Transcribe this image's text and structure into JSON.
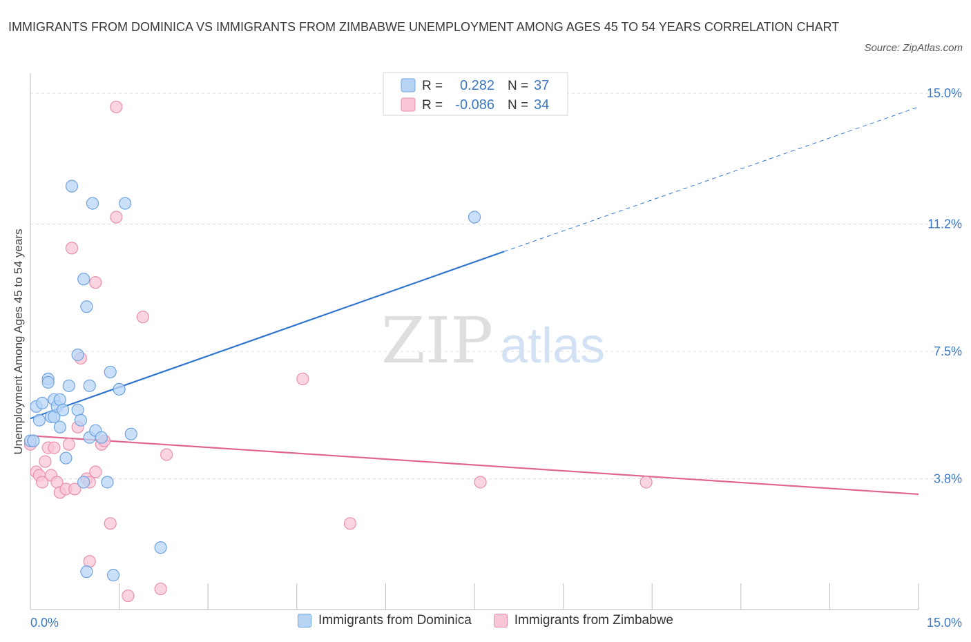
{
  "title": "IMMIGRANTS FROM DOMINICA VS IMMIGRANTS FROM ZIMBABWE UNEMPLOYMENT AMONG AGES 45 TO 54 YEARS CORRELATION CHART",
  "source": "Source: ZipAtlas.com",
  "watermark": {
    "zip": "ZIP",
    "atlas": "atlas"
  },
  "colors": {
    "blue_fill": "#b8d4f5",
    "blue_stroke": "#6fa3e0",
    "blue_line": "#2f74d0",
    "pink_fill": "#f8c6d6",
    "pink_stroke": "#e98fae",
    "pink_line": "#e0648e",
    "axis_text": "#3b78c4",
    "grid": "#dcdcdc"
  },
  "stats_legend": [
    {
      "r_label": "R =",
      "r_value": "0.282",
      "n_label": "N =",
      "n_value": "37"
    },
    {
      "r_label": "R =",
      "r_value": "-0.086",
      "n_label": "N =",
      "n_value": "34"
    }
  ],
  "chart_data": {
    "type": "scatter",
    "xlabel": "",
    "ylabel": "Unemployment Among Ages 45 to 54 years",
    "xlim": [
      0,
      15
    ],
    "ylim": [
      0,
      15
    ],
    "x_tick_labels": [
      "0.0%",
      "15.0%"
    ],
    "y_ticks": [
      3.8,
      7.5,
      11.2,
      15.0
    ],
    "y_tick_labels": [
      "3.8%",
      "7.5%",
      "11.2%",
      "15.0%"
    ],
    "legend": [
      "Immigrants from Dominica",
      "Immigrants from Zimbabwe"
    ],
    "series": [
      {
        "name": "Immigrants from Dominica",
        "color": "blue",
        "points": [
          [
            0.0,
            4.9
          ],
          [
            0.05,
            4.9
          ],
          [
            0.1,
            5.9
          ],
          [
            0.15,
            5.5
          ],
          [
            0.2,
            6.0
          ],
          [
            0.3,
            6.7
          ],
          [
            0.3,
            6.6
          ],
          [
            0.35,
            5.6
          ],
          [
            0.4,
            5.6
          ],
          [
            0.4,
            6.1
          ],
          [
            0.45,
            5.9
          ],
          [
            0.5,
            6.1
          ],
          [
            0.5,
            5.3
          ],
          [
            0.55,
            5.8
          ],
          [
            0.6,
            4.4
          ],
          [
            0.65,
            6.5
          ],
          [
            0.7,
            12.3
          ],
          [
            0.8,
            7.4
          ],
          [
            0.8,
            5.8
          ],
          [
            0.85,
            5.5
          ],
          [
            0.9,
            9.6
          ],
          [
            0.9,
            3.7
          ],
          [
            0.95,
            8.8
          ],
          [
            0.95,
            1.1
          ],
          [
            1.0,
            6.5
          ],
          [
            1.0,
            5.0
          ],
          [
            1.05,
            11.8
          ],
          [
            1.1,
            5.2
          ],
          [
            1.2,
            5.0
          ],
          [
            1.3,
            3.7
          ],
          [
            1.35,
            6.9
          ],
          [
            1.4,
            1.0
          ],
          [
            1.5,
            6.4
          ],
          [
            1.6,
            11.8
          ],
          [
            1.7,
            5.1
          ],
          [
            2.2,
            1.8
          ],
          [
            7.5,
            11.4
          ]
        ],
        "trend": {
          "x": [
            0.0,
            8.0
          ],
          "y": [
            5.55,
            10.4
          ],
          "dashed_extension": {
            "x": [
              8.0,
              15.0
            ],
            "y": [
              10.4,
              14.6
            ]
          }
        }
      },
      {
        "name": "Immigrants from Zimbabwe",
        "color": "pink",
        "points": [
          [
            0.0,
            4.8
          ],
          [
            0.1,
            4.0
          ],
          [
            0.15,
            3.9
          ],
          [
            0.2,
            3.7
          ],
          [
            0.25,
            4.3
          ],
          [
            0.3,
            4.7
          ],
          [
            0.35,
            3.9
          ],
          [
            0.4,
            4.7
          ],
          [
            0.45,
            3.7
          ],
          [
            0.5,
            3.4
          ],
          [
            0.6,
            3.5
          ],
          [
            0.65,
            4.8
          ],
          [
            0.7,
            10.5
          ],
          [
            0.75,
            3.5
          ],
          [
            0.8,
            5.3
          ],
          [
            0.85,
            7.3
          ],
          [
            0.95,
            3.8
          ],
          [
            1.0,
            3.7
          ],
          [
            1.0,
            1.4
          ],
          [
            1.1,
            4.0
          ],
          [
            1.1,
            9.5
          ],
          [
            1.2,
            4.8
          ],
          [
            1.25,
            4.9
          ],
          [
            1.35,
            2.5
          ],
          [
            1.45,
            14.6
          ],
          [
            1.45,
            11.4
          ],
          [
            1.65,
            0.4
          ],
          [
            1.9,
            8.5
          ],
          [
            2.2,
            0.6
          ],
          [
            2.3,
            4.5
          ],
          [
            4.6,
            6.7
          ],
          [
            5.4,
            2.5
          ],
          [
            7.6,
            3.7
          ],
          [
            10.4,
            3.7
          ]
        ],
        "trend": {
          "x": [
            0.0,
            15.0
          ],
          "y": [
            5.05,
            3.35
          ]
        }
      }
    ]
  }
}
